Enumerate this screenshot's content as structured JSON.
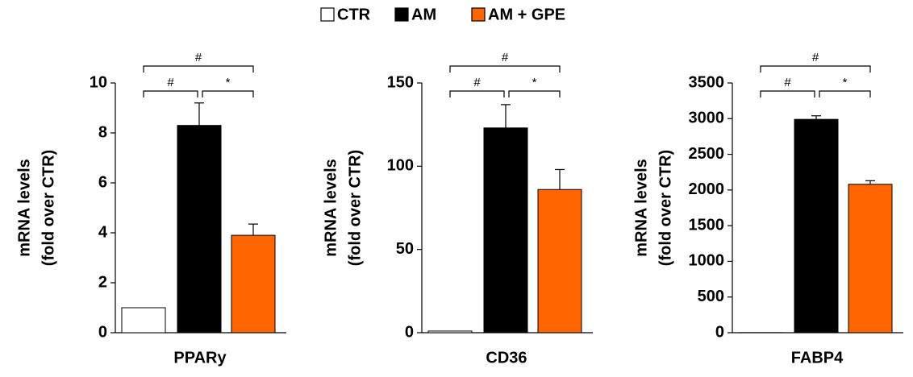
{
  "chart_data": {
    "type": "bar",
    "categories": [
      "PPARy",
      "CD36",
      "FABP4"
    ],
    "series": [
      {
        "name": "CTR",
        "color": "#ffffff",
        "values": [
          1,
          1,
          1
        ],
        "errors": [
          0,
          0,
          0
        ]
      },
      {
        "name": "AM",
        "color": "#000000",
        "values": [
          8.3,
          123,
          2990
        ],
        "errors": [
          0.9,
          14,
          50
        ]
      },
      {
        "name": "AM + GPE",
        "color": "#ff6600",
        "values": [
          3.9,
          86,
          2080
        ],
        "errors": [
          0.45,
          12,
          50
        ]
      }
    ],
    "legend": "top",
    "panels": [
      {
        "ylim": [
          0,
          10
        ],
        "yticks": [
          0,
          2,
          4,
          6,
          8,
          10
        ],
        "ylabel": [
          "mRNA levels",
          "(fold over CTR)"
        ],
        "brackets": [
          "#",
          "*",
          "#"
        ]
      },
      {
        "ylim": [
          0,
          150
        ],
        "yticks": [
          0,
          50,
          100,
          150
        ],
        "ylabel": [
          "mRNA levels",
          "(fold over CTR)"
        ],
        "brackets": [
          "#",
          "*",
          "#"
        ]
      },
      {
        "ylim": [
          0,
          3500
        ],
        "yticks": [
          0,
          500,
          1000,
          1500,
          2000,
          2500,
          3000,
          3500
        ],
        "ylabel": [
          "mRNA levels",
          "(fold over CTR)"
        ],
        "brackets": [
          "#",
          "*",
          "#"
        ]
      }
    ]
  }
}
